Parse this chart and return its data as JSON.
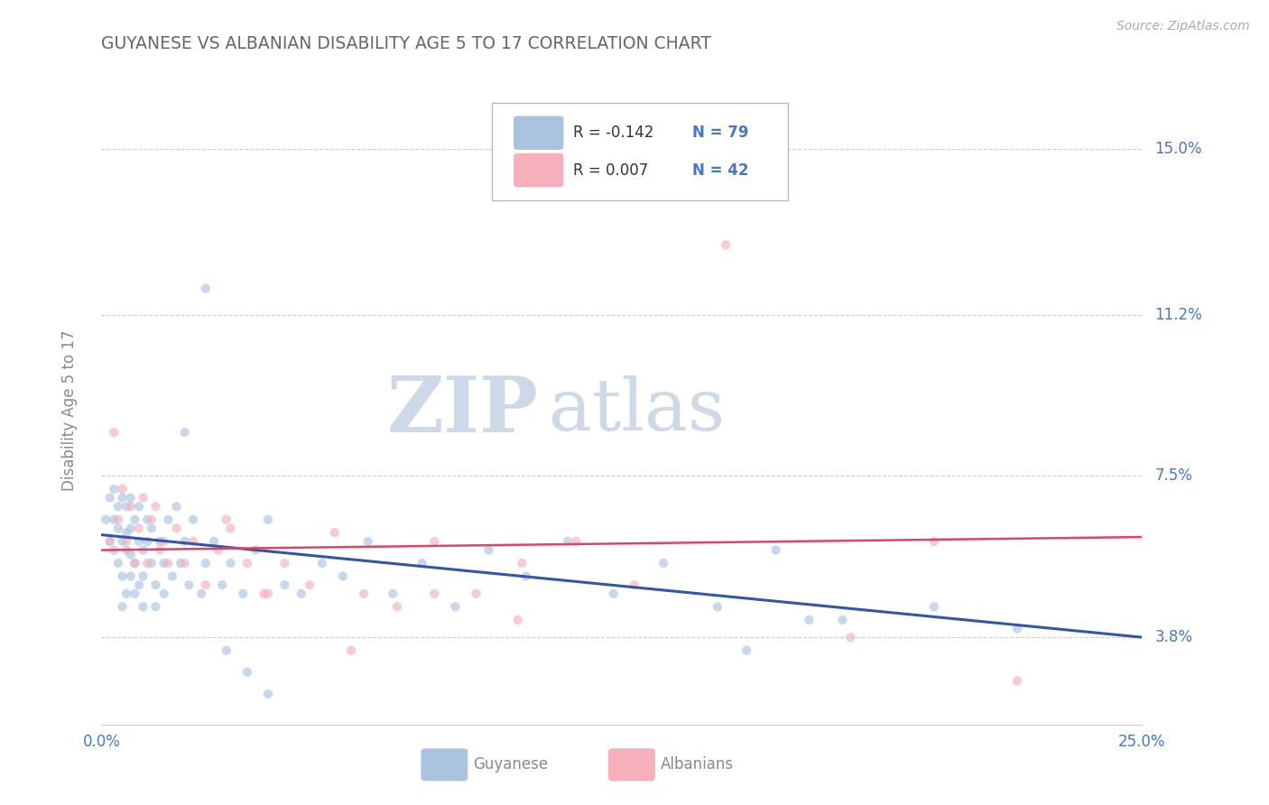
{
  "title": "GUYANESE VS ALBANIAN DISABILITY AGE 5 TO 17 CORRELATION CHART",
  "source_text": "Source: ZipAtlas.com",
  "ylabel": "Disability Age 5 to 17",
  "xlim": [
    0.0,
    0.25
  ],
  "ylim": [
    0.018,
    0.162
  ],
  "yticks": [
    0.038,
    0.075,
    0.112,
    0.15
  ],
  "ytick_labels": [
    "3.8%",
    "7.5%",
    "11.2%",
    "15.0%"
  ],
  "xtick_positions": [
    0.0,
    0.25
  ],
  "xtick_labels": [
    "0.0%",
    "25.0%"
  ],
  "background_color": "#ffffff",
  "grid_color": "#cccccc",
  "title_color": "#666666",
  "source_color": "#aaaaaa",
  "ylabel_color": "#888888",
  "tick_label_color": "#4477cc",
  "watermark_zip": "ZIP",
  "watermark_atlas": "atlas",
  "watermark_color": "#cdd8e8",
  "legend_r1": "R = -0.142",
  "legend_n1": "N = 79",
  "legend_r2": "R = 0.007",
  "legend_n2": "N = 42",
  "legend_text_color": "#4477cc",
  "legend_r_color": "#333333",
  "guyanese_dot_color": "#aac4e0",
  "albanian_dot_color": "#f5b0bc",
  "guyanese_line_color": "#3355aa",
  "albanian_line_color": "#dd4466",
  "dot_size": 55,
  "dot_alpha": 0.65,
  "guyanese_x": [
    0.001,
    0.002,
    0.002,
    0.003,
    0.003,
    0.003,
    0.004,
    0.004,
    0.004,
    0.005,
    0.005,
    0.005,
    0.005,
    0.006,
    0.006,
    0.006,
    0.006,
    0.007,
    0.007,
    0.007,
    0.007,
    0.008,
    0.008,
    0.008,
    0.009,
    0.009,
    0.009,
    0.01,
    0.01,
    0.01,
    0.011,
    0.011,
    0.012,
    0.012,
    0.013,
    0.013,
    0.014,
    0.015,
    0.015,
    0.016,
    0.017,
    0.018,
    0.019,
    0.02,
    0.021,
    0.022,
    0.024,
    0.025,
    0.027,
    0.029,
    0.031,
    0.034,
    0.037,
    0.04,
    0.044,
    0.048,
    0.053,
    0.058,
    0.064,
    0.07,
    0.077,
    0.085,
    0.093,
    0.102,
    0.112,
    0.123,
    0.135,
    0.148,
    0.162,
    0.178,
    0.02,
    0.025,
    0.03,
    0.035,
    0.04,
    0.155,
    0.17,
    0.2,
    0.22
  ],
  "guyanese_y": [
    0.065,
    0.07,
    0.06,
    0.065,
    0.058,
    0.072,
    0.055,
    0.063,
    0.068,
    0.06,
    0.052,
    0.07,
    0.045,
    0.062,
    0.058,
    0.068,
    0.048,
    0.063,
    0.057,
    0.052,
    0.07,
    0.065,
    0.048,
    0.055,
    0.06,
    0.05,
    0.068,
    0.058,
    0.052,
    0.045,
    0.065,
    0.06,
    0.055,
    0.063,
    0.05,
    0.045,
    0.06,
    0.055,
    0.048,
    0.065,
    0.052,
    0.068,
    0.055,
    0.06,
    0.05,
    0.065,
    0.048,
    0.055,
    0.06,
    0.05,
    0.055,
    0.048,
    0.058,
    0.065,
    0.05,
    0.048,
    0.055,
    0.052,
    0.06,
    0.048,
    0.055,
    0.045,
    0.058,
    0.052,
    0.06,
    0.048,
    0.055,
    0.045,
    0.058,
    0.042,
    0.085,
    0.118,
    0.035,
    0.03,
    0.025,
    0.035,
    0.042,
    0.045,
    0.04
  ],
  "albanian_x": [
    0.002,
    0.003,
    0.004,
    0.005,
    0.006,
    0.007,
    0.008,
    0.009,
    0.01,
    0.011,
    0.012,
    0.013,
    0.014,
    0.015,
    0.016,
    0.018,
    0.02,
    0.022,
    0.025,
    0.028,
    0.031,
    0.035,
    0.039,
    0.044,
    0.05,
    0.056,
    0.063,
    0.071,
    0.08,
    0.09,
    0.101,
    0.114,
    0.128,
    0.03,
    0.04,
    0.06,
    0.08,
    0.1,
    0.15,
    0.18,
    0.2,
    0.22
  ],
  "albanian_y": [
    0.06,
    0.085,
    0.065,
    0.072,
    0.06,
    0.068,
    0.055,
    0.063,
    0.07,
    0.055,
    0.065,
    0.068,
    0.058,
    0.06,
    0.055,
    0.063,
    0.055,
    0.06,
    0.05,
    0.058,
    0.063,
    0.055,
    0.048,
    0.055,
    0.05,
    0.062,
    0.048,
    0.045,
    0.06,
    0.048,
    0.055,
    0.06,
    0.05,
    0.065,
    0.048,
    0.035,
    0.048,
    0.042,
    0.128,
    0.038,
    0.06,
    0.028
  ],
  "guyanese_trend_x": [
    0.0,
    0.25
  ],
  "guyanese_trend_y": [
    0.0615,
    0.038
  ],
  "albanian_trend_x": [
    0.0,
    0.25
  ],
  "albanian_trend_y": [
    0.058,
    0.061
  ]
}
